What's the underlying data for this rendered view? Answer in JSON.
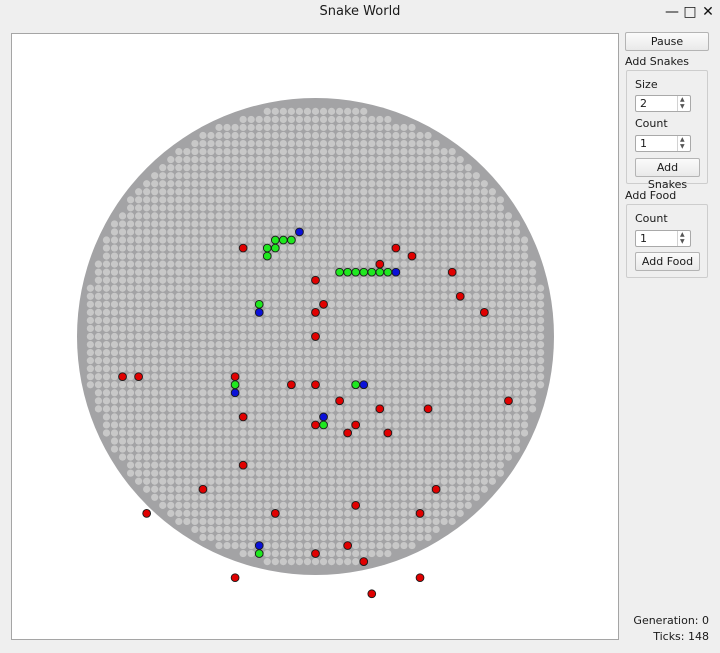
{
  "window": {
    "title": "Snake World",
    "controls": {
      "minimize": "—",
      "maximize": "□",
      "close": "✕"
    }
  },
  "world": {
    "grid_cells_across": 59,
    "snakes": [
      {
        "head": [
          27,
          16
        ],
        "body": [
          [
            26,
            17
          ],
          [
            25,
            17
          ],
          [
            24,
            18
          ],
          [
            23,
            18
          ],
          [
            24,
            17
          ],
          [
            23,
            19
          ]
        ]
      },
      {
        "head": [
          39,
          21
        ],
        "body": [
          [
            38,
            21
          ],
          [
            37,
            21
          ],
          [
            36,
            21
          ],
          [
            35,
            21
          ],
          [
            34,
            21
          ],
          [
            33,
            21
          ],
          [
            32,
            21
          ]
        ]
      },
      {
        "head": [
          22,
          26
        ],
        "body": [
          [
            22,
            25
          ]
        ]
      },
      {
        "head": [
          19,
          36
        ],
        "body": [
          [
            19,
            35
          ]
        ]
      },
      {
        "head": [
          35,
          35
        ],
        "body": [
          [
            34,
            35
          ]
        ]
      },
      {
        "head": [
          30,
          39
        ],
        "body": [
          [
            30,
            40
          ]
        ]
      },
      {
        "head": [
          22,
          55
        ],
        "body": [
          [
            22,
            56
          ]
        ]
      }
    ],
    "food": [
      [
        20,
        18
      ],
      [
        39,
        18
      ],
      [
        41,
        19
      ],
      [
        37,
        20
      ],
      [
        46,
        21
      ],
      [
        29,
        22
      ],
      [
        47,
        24
      ],
      [
        30,
        25
      ],
      [
        29,
        26
      ],
      [
        50,
        26
      ],
      [
        29,
        29
      ],
      [
        5,
        34
      ],
      [
        7,
        34
      ],
      [
        19,
        34
      ],
      [
        26,
        35
      ],
      [
        29,
        35
      ],
      [
        32,
        37
      ],
      [
        37,
        38
      ],
      [
        43,
        38
      ],
      [
        53,
        37
      ],
      [
        20,
        39
      ],
      [
        29,
        40
      ],
      [
        33,
        41
      ],
      [
        34,
        40
      ],
      [
        38,
        41
      ],
      [
        20,
        45
      ],
      [
        15,
        48
      ],
      [
        44,
        48
      ],
      [
        8,
        51
      ],
      [
        24,
        51
      ],
      [
        34,
        50
      ],
      [
        42,
        51
      ],
      [
        33,
        55
      ],
      [
        29,
        56
      ],
      [
        35,
        57
      ],
      [
        19,
        59
      ],
      [
        42,
        59
      ],
      [
        36,
        61
      ]
    ],
    "colors": {
      "border_ring": "#a3a3a5",
      "cell": "#c8c8c8",
      "food": "#e00000",
      "snake_body": "#1fe81f",
      "snake_head": "#0a10d8",
      "outline": "#1a1a1a"
    }
  },
  "controls": {
    "pause_label": "Pause",
    "add_snakes": {
      "title": "Add Snakes",
      "size_label": "Size",
      "size_value": "2",
      "count_label": "Count",
      "count_value": "1",
      "button_label": "Add Snakes"
    },
    "add_food": {
      "title": "Add Food",
      "count_label": "Count",
      "count_value": "1",
      "button_label": "Add Food"
    }
  },
  "status": {
    "generation": "Generation: 0",
    "ticks": "Ticks: 148"
  }
}
